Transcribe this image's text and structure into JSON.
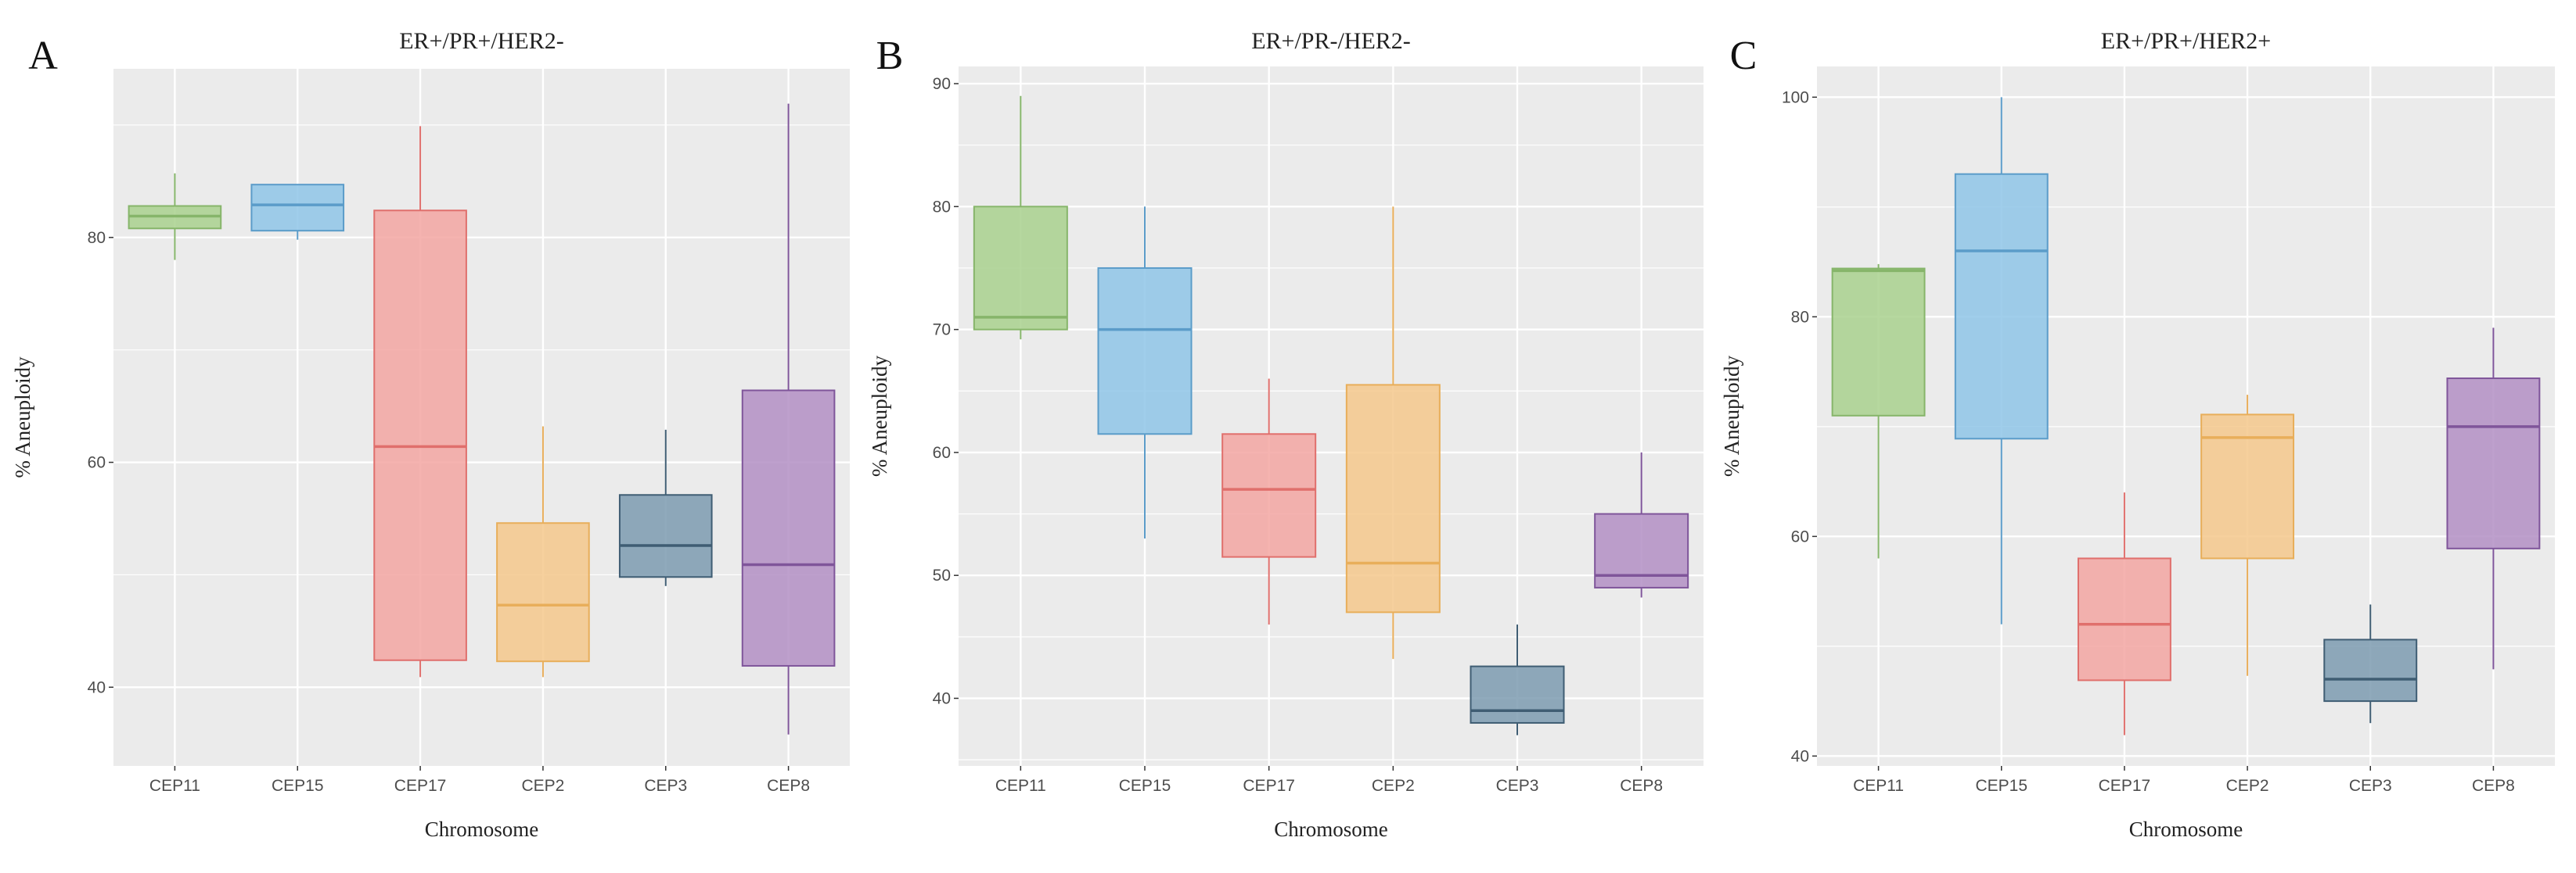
{
  "chart_data": [
    {
      "type": "box",
      "panel_label": "A",
      "title": "ER+/PR+/HER2-",
      "xlabel": "Chromosome",
      "ylabel": "% Aneuploidy",
      "categories": [
        "CEP11",
        "CEP15",
        "CEP17",
        "CEP2",
        "CEP3",
        "CEP8"
      ],
      "yticks": [
        40,
        60,
        80
      ],
      "ylim": [
        33,
        95
      ],
      "grid": true,
      "boxes": [
        {
          "min": 78,
          "q1": 80.8,
          "median": 81.9,
          "q3": 82.8,
          "max": 85.7
        },
        {
          "min": 79.8,
          "q1": 80.6,
          "median": 82.9,
          "q3": 84.7,
          "max": 84.7
        },
        {
          "min": 40.9,
          "q1": 42.4,
          "median": 61.4,
          "q3": 82.4,
          "max": 89.9
        },
        {
          "min": 40.9,
          "q1": 42.3,
          "median": 47.3,
          "q3": 54.6,
          "max": 63.2
        },
        {
          "min": 49,
          "q1": 49.8,
          "median": 52.6,
          "q3": 57.1,
          "max": 62.9
        },
        {
          "min": 35.8,
          "q1": 41.9,
          "median": 50.9,
          "q3": 66.4,
          "max": 91.9
        }
      ]
    },
    {
      "type": "box",
      "panel_label": "B",
      "title": "ER+/PR-/HER2-",
      "xlabel": "Chromosome",
      "ylabel": "% Aneuploidy",
      "categories": [
        "CEP11",
        "CEP15",
        "CEP17",
        "CEP2",
        "CEP3",
        "CEP8"
      ],
      "yticks": [
        40,
        50,
        60,
        70,
        80,
        90
      ],
      "ylim": [
        34.5,
        91.4
      ],
      "grid": true,
      "boxes": [
        {
          "min": 69.2,
          "q1": 70,
          "median": 71,
          "q3": 80,
          "max": 89
        },
        {
          "min": 53,
          "q1": 61.5,
          "median": 70,
          "q3": 75,
          "max": 80
        },
        {
          "min": 46,
          "q1": 51.5,
          "median": 57,
          "q3": 61.5,
          "max": 66
        },
        {
          "min": 43.2,
          "q1": 47,
          "median": 51,
          "q3": 65.5,
          "max": 80
        },
        {
          "min": 37,
          "q1": 38,
          "median": 39,
          "q3": 42.6,
          "max": 46
        },
        {
          "min": 48.2,
          "q1": 49,
          "median": 50,
          "q3": 55,
          "max": 60
        }
      ]
    },
    {
      "type": "box",
      "panel_label": "C",
      "title": "ER+/PR+/HER2+",
      "xlabel": "Chromosome",
      "ylabel": "% Aneuploidy",
      "categories": [
        "CEP11",
        "CEP15",
        "CEP17",
        "CEP2",
        "CEP3",
        "CEP8"
      ],
      "yticks": [
        40,
        60,
        80,
        100
      ],
      "ylim": [
        39.1,
        102.8
      ],
      "grid": true,
      "boxes": [
        {
          "min": 58,
          "q1": 71,
          "median": 84.2,
          "q3": 84.4,
          "max": 84.8
        },
        {
          "min": 52,
          "q1": 68.9,
          "median": 86,
          "q3": 93,
          "max": 100
        },
        {
          "min": 41.9,
          "q1": 46.9,
          "median": 52,
          "q3": 58,
          "max": 64
        },
        {
          "min": 47.3,
          "q1": 58,
          "median": 69,
          "q3": 71.1,
          "max": 72.9
        },
        {
          "min": 43,
          "q1": 45,
          "median": 47,
          "q3": 50.6,
          "max": 53.8
        },
        {
          "min": 47.9,
          "q1": 58.9,
          "median": 70,
          "q3": 74.4,
          "max": 79
        }
      ]
    }
  ],
  "colors": {
    "fills": [
      "#a9d18e",
      "#8fc6e8",
      "#f3a6a2",
      "#f5c88c",
      "#7d9bb0",
      "#b38fc4"
    ],
    "lines": [
      "#86b56a",
      "#5b9cc9",
      "#e06f6c",
      "#e8ae5a",
      "#3f5d73",
      "#7f559a"
    ],
    "panel_background": "#ebebeb",
    "grid": "#ffffff"
  }
}
